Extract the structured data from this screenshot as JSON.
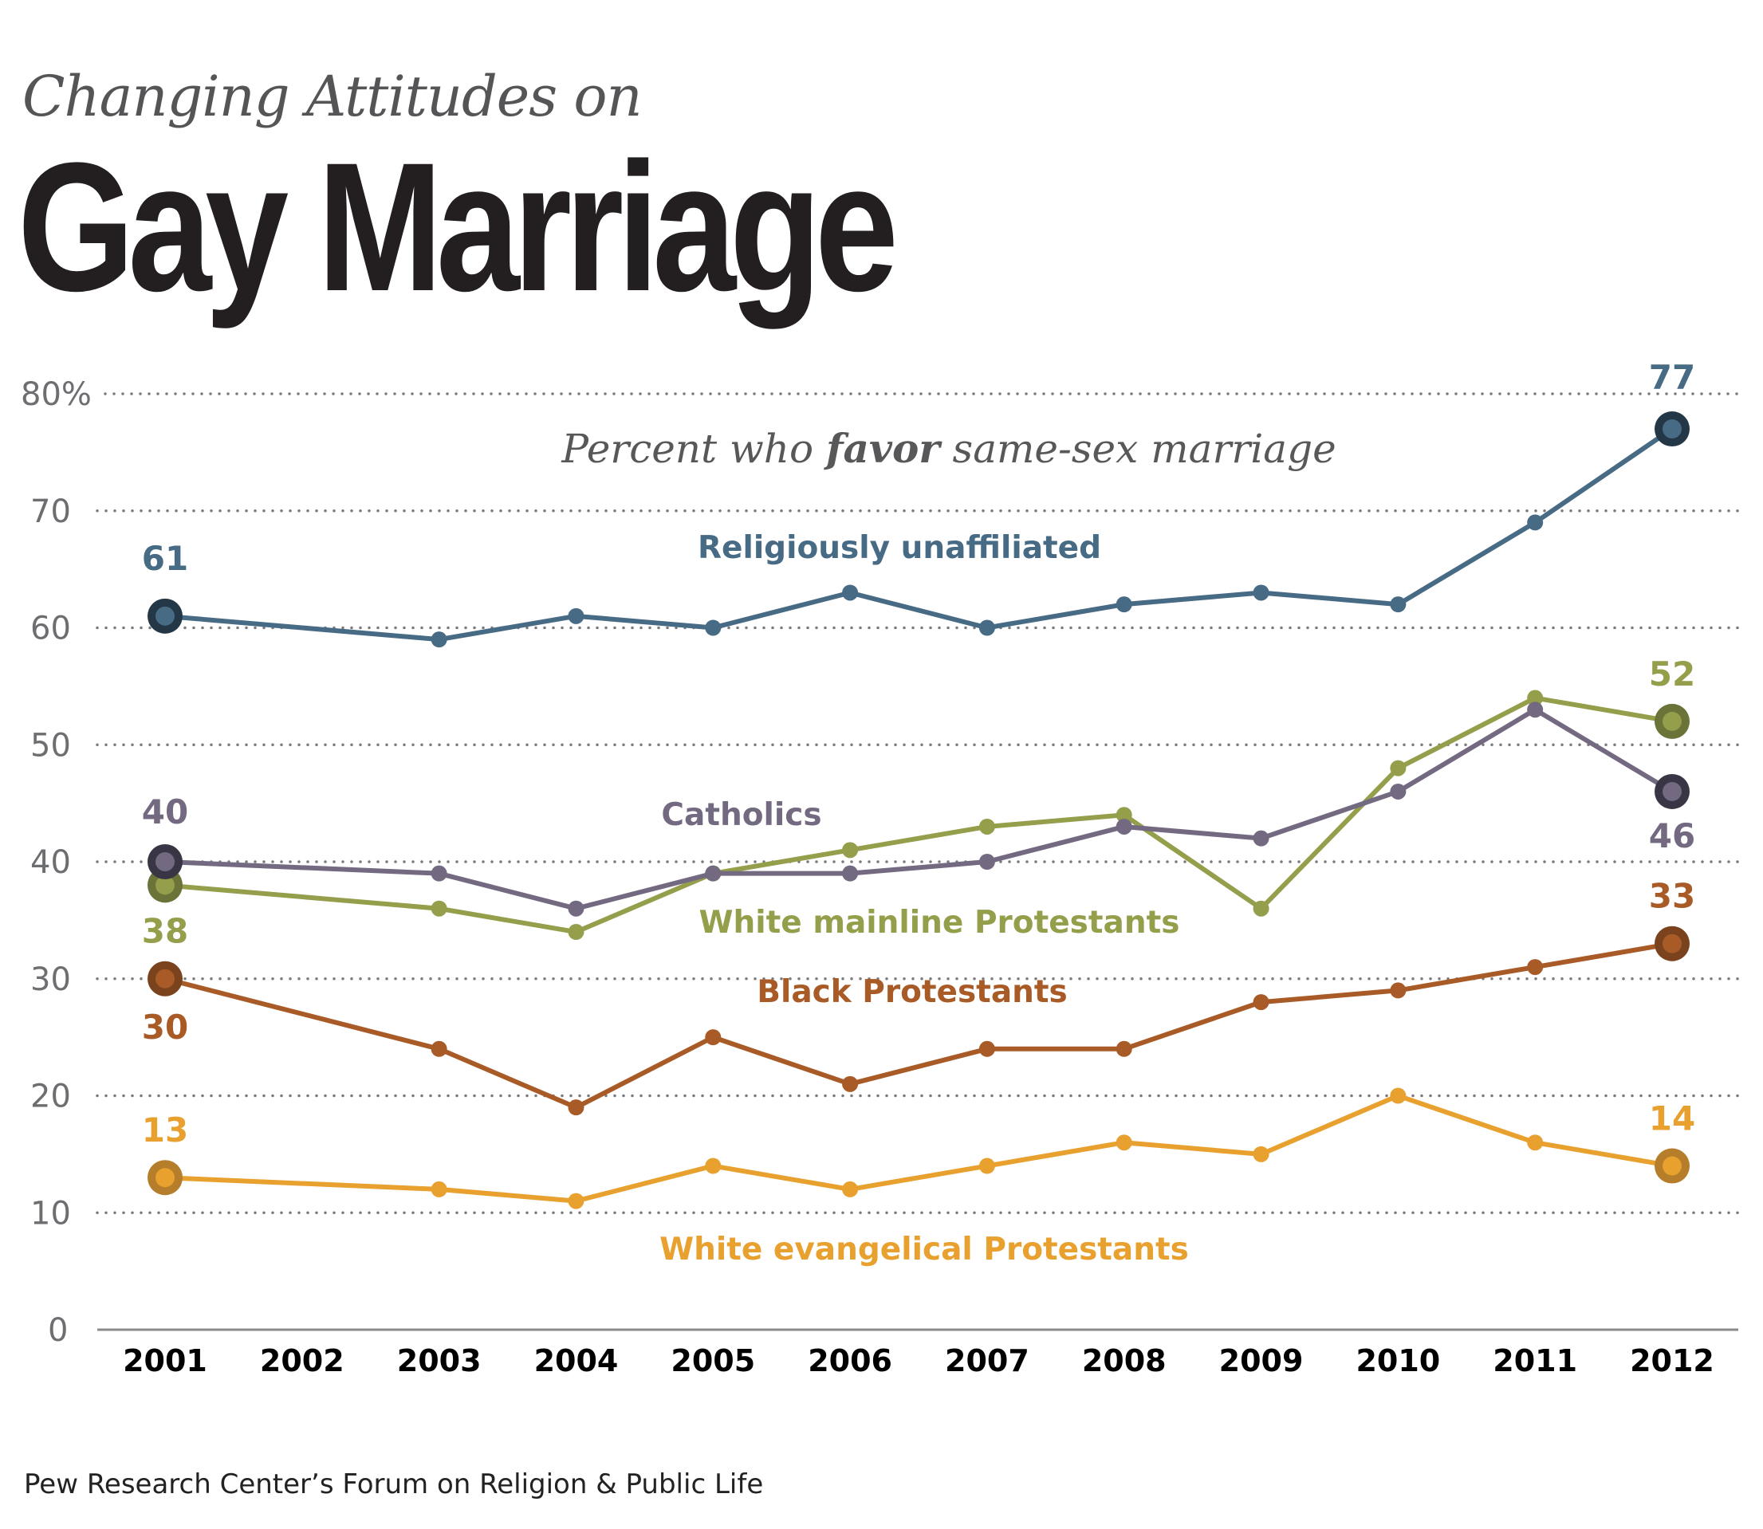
{
  "header": {
    "kicker": "Changing Attitudes on",
    "title": "Gay Marriage"
  },
  "footer": {
    "source": "Pew Research Center’s Forum on Religion & Public Life"
  },
  "chart_data": {
    "type": "line",
    "subtitle_pre": "Percent who ",
    "subtitle_bold": "favor",
    "subtitle_post": " same-sex marriage",
    "x": [
      "2001",
      "2002",
      "2003",
      "2004",
      "2005",
      "2006",
      "2007",
      "2008",
      "2009",
      "2010",
      "2011",
      "2012"
    ],
    "ylim": [
      0,
      80
    ],
    "yticks": [
      {
        "value": 0,
        "label": "0"
      },
      {
        "value": 10,
        "label": "10"
      },
      {
        "value": 20,
        "label": "20"
      },
      {
        "value": 30,
        "label": "30"
      },
      {
        "value": 40,
        "label": "40"
      },
      {
        "value": 50,
        "label": "50"
      },
      {
        "value": 60,
        "label": "60"
      },
      {
        "value": 70,
        "label": "70"
      },
      {
        "value": 80,
        "label": "80%"
      }
    ],
    "grid": true,
    "series": [
      {
        "name": "Religiously unaffiliated",
        "color": "#476a85",
        "ring": "#243747",
        "values": [
          61,
          null,
          59,
          61,
          60,
          63,
          60,
          62,
          63,
          62,
          69,
          77
        ],
        "start_label": "61",
        "end_label": "77"
      },
      {
        "name": "Catholics",
        "color": "#736a82",
        "ring": "#3a3544",
        "values": [
          40,
          null,
          39,
          36,
          39,
          39,
          40,
          43,
          42,
          46,
          53,
          46
        ],
        "start_label": "40",
        "end_label": "46"
      },
      {
        "name": "White mainline Protestants",
        "color": "#959e4a",
        "ring": "#6b7338",
        "values": [
          38,
          null,
          36,
          34,
          39,
          41,
          43,
          44,
          36,
          48,
          54,
          52
        ],
        "start_label": "38",
        "end_label": "52"
      },
      {
        "name": "Black Protestants",
        "color": "#a95b27",
        "ring": "#7a431d",
        "values": [
          30,
          null,
          24,
          19,
          25,
          21,
          24,
          24,
          28,
          29,
          31,
          33
        ],
        "start_label": "30",
        "end_label": "33"
      },
      {
        "name": "White evangelical Protestants",
        "color": "#e8a12e",
        "ring": "#b67e2a",
        "values": [
          13,
          null,
          12,
          11,
          14,
          12,
          14,
          16,
          15,
          20,
          16,
          14
        ],
        "start_label": "13",
        "end_label": "14"
      }
    ]
  }
}
